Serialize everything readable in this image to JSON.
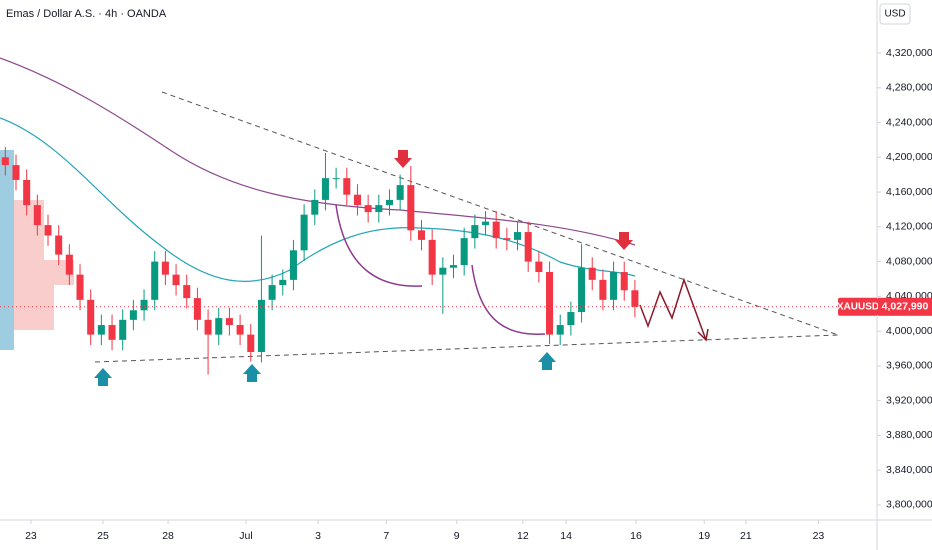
{
  "chart_data": {
    "type": "candlestick",
    "title": "Emas / Dollar A.S. · 4h · OANDA",
    "currency": "USD",
    "up_color": "#089981",
    "down_color": "#f23645",
    "open": [
      4200000,
      4191000,
      4174000,
      4145000,
      4122000,
      4110000,
      4088000,
      4065000,
      4036000,
      3996000,
      4007000,
      3990000,
      4013000,
      4024000,
      4036000,
      4080000,
      4065000,
      4053000,
      4038000,
      4013000,
      3996000,
      4015000,
      4007000,
      3996000,
      3976000,
      4036000,
      4053000,
      4059000,
      4093000,
      4134000,
      4151000,
      4176000,
      4176000,
      4157000,
      4145000,
      4137000,
      4145000,
      4151000,
      4168000,
      4116000,
      4105000,
      4065000,
      4073000,
      4076000,
      4107000,
      4122000,
      4126000,
      4107000,
      4105000,
      4114000,
      4080000,
      4068000,
      3996000,
      4007000,
      4022000,
      4073000,
      4059000,
      4036000,
      4068000,
      4047000
    ],
    "high": [
      4212000,
      4203000,
      4186000,
      4157000,
      4134000,
      4122000,
      4100000,
      4077000,
      4048000,
      4019000,
      4019000,
      4025000,
      4036000,
      4048000,
      4092000,
      4092000,
      4077000,
      4065000,
      4050000,
      4025000,
      4027000,
      4027000,
      4019000,
      4008000,
      4110000,
      4065000,
      4071000,
      4105000,
      4146000,
      4163000,
      4205000,
      4188000,
      4188000,
      4169000,
      4157000,
      4157000,
      4163000,
      4180000,
      4190000,
      4128000,
      4117000,
      4085000,
      4088000,
      4119000,
      4134000,
      4138000,
      4138000,
      4119000,
      4126000,
      4126000,
      4092000,
      4080000,
      4019000,
      4034000,
      4100000,
      4085000,
      4071000,
      4080000,
      4080000,
      4059000
    ],
    "low": [
      4179000,
      4162000,
      4133000,
      4110000,
      4098000,
      4076000,
      4053000,
      4024000,
      3984000,
      3984000,
      3978000,
      3978000,
      4001000,
      4012000,
      4024000,
      4053000,
      4041000,
      4026000,
      4001000,
      3950000,
      3984000,
      3995000,
      3984000,
      3965000,
      3964000,
      4024000,
      4041000,
      4047000,
      4081000,
      4122000,
      4139000,
      4164000,
      4145000,
      4133000,
      4125000,
      4125000,
      4133000,
      4139000,
      4104000,
      4093000,
      4053000,
      4020000,
      4061000,
      4064000,
      4095000,
      4110000,
      4095000,
      4093000,
      4093000,
      4068000,
      4056000,
      3985000,
      3984000,
      3995000,
      4010000,
      4047000,
      4024000,
      4024000,
      4035000,
      4016000
    ],
    "close": [
      4191000,
      4174000,
      4145000,
      4122000,
      4110000,
      4088000,
      4065000,
      4036000,
      3996000,
      4007000,
      3990000,
      4013000,
      4024000,
      4036000,
      4080000,
      4065000,
      4053000,
      4038000,
      4013000,
      3996000,
      4015000,
      4007000,
      3996000,
      3976000,
      4036000,
      4053000,
      4059000,
      4093000,
      4134000,
      4151000,
      4176000,
      4176000,
      4157000,
      4145000,
      4137000,
      4145000,
      4151000,
      4168000,
      4116000,
      4105000,
      4065000,
      4073000,
      4076000,
      4107000,
      4122000,
      4126000,
      4107000,
      4105000,
      4114000,
      4080000,
      4068000,
      3996000,
      4007000,
      4022000,
      4073000,
      4059000,
      4036000,
      4068000,
      4047000,
      4028000
    ],
    "xlim": [
      0,
      82
    ],
    "xticks": [
      {
        "value": 2.9,
        "label": "23"
      },
      {
        "value": 9.65,
        "label": "25"
      },
      {
        "value": 15.75,
        "label": "28"
      },
      {
        "value": 23.05,
        "label": "Jul"
      },
      {
        "value": 29.8,
        "label": "3"
      },
      {
        "value": 36.2,
        "label": "7"
      },
      {
        "value": 42.8,
        "label": "9"
      },
      {
        "value": 49,
        "label": "12"
      },
      {
        "value": 53.05,
        "label": "14"
      },
      {
        "value": 59.6,
        "label": "16"
      },
      {
        "value": 66,
        "label": "19"
      },
      {
        "value": 69.9,
        "label": "21"
      },
      {
        "value": 76.7,
        "label": "23"
      }
    ],
    "ylim": [
      3782700,
      4381000
    ],
    "yticks": [
      {
        "value": 3800000,
        "label": "3,800,000"
      },
      {
        "value": 3840000,
        "label": "3,840,000"
      },
      {
        "value": 3880000,
        "label": "3,880,000"
      },
      {
        "value": 3920000,
        "label": "3,920,000"
      },
      {
        "value": 3960000,
        "label": "3,960,000"
      },
      {
        "value": 4000000,
        "label": "4,000,000"
      },
      {
        "value": 4040000,
        "label": "4,040,000"
      },
      {
        "value": 4080000,
        "label": "4,080,000"
      },
      {
        "value": 4120000,
        "label": "4,120,000"
      },
      {
        "value": 4160000,
        "label": "4,160,000"
      },
      {
        "value": 4200000,
        "label": "4,200,000"
      },
      {
        "value": 4240000,
        "label": "4,240,000"
      },
      {
        "value": 4280000,
        "label": "4,280,000"
      },
      {
        "value": 4320000,
        "label": "4,320,000"
      }
    ],
    "last_price": {
      "name": "XAUUSD",
      "value": 4027990,
      "label": "4,027,990",
      "color": "#f23645"
    }
  }
}
